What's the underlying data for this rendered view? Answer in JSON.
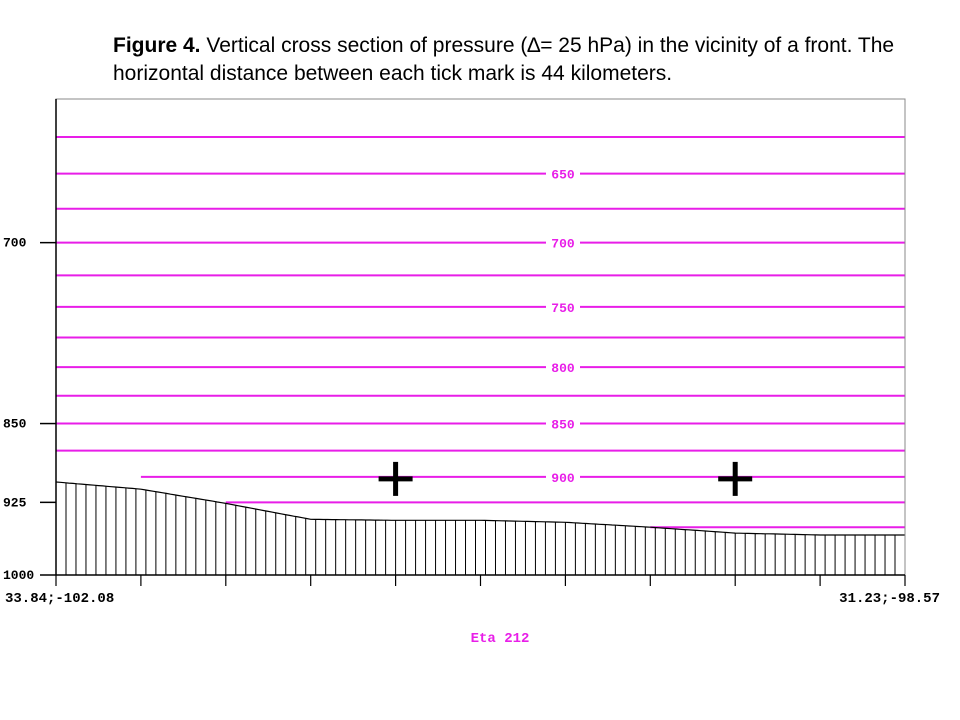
{
  "caption": {
    "label": "Figure 4.",
    "text_before_delta": " Vertical cross section of pressure (",
    "delta_symbol": "∆",
    "text_after_delta": "= 25 hPa) in the vicinity of a front. The horizontal distance between each tick mark is 44 kilometers."
  },
  "chart_data": {
    "type": "line",
    "xlim": [
      0,
      10
    ],
    "ylim": [
      1000,
      600
    ],
    "y_scale": "log",
    "left_ticks": [
      {
        "p": 700,
        "label": "700"
      },
      {
        "p": 850,
        "label": "850"
      },
      {
        "p": 925,
        "label": "925"
      },
      {
        "p": 1000,
        "label": "1000"
      }
    ],
    "x_tick_positions": [
      0,
      1,
      2,
      3,
      4,
      5,
      6,
      7,
      8,
      9,
      10
    ],
    "x_end_labels": [
      "33.84;-102.08",
      "31.23;-98.57"
    ],
    "isobar_labels": [
      {
        "p": 650,
        "label": "650"
      },
      {
        "p": 700,
        "label": "700"
      },
      {
        "p": 750,
        "label": "750"
      },
      {
        "p": 800,
        "label": "800"
      },
      {
        "p": 850,
        "label": "850"
      },
      {
        "p": 900,
        "label": "900"
      }
    ],
    "isobars": [
      {
        "p": 625,
        "x_start": 0
      },
      {
        "p": 650,
        "x_start": 0
      },
      {
        "p": 675,
        "x_start": 0
      },
      {
        "p": 700,
        "x_start": 0
      },
      {
        "p": 725,
        "x_start": 0
      },
      {
        "p": 750,
        "x_start": 0
      },
      {
        "p": 775,
        "x_start": 0
      },
      {
        "p": 800,
        "x_start": 0
      },
      {
        "p": 825,
        "x_start": 0
      },
      {
        "p": 850,
        "x_start": 0
      },
      {
        "p": 875,
        "x_start": 0
      },
      {
        "p": 900,
        "x_start": 1
      },
      {
        "p": 925,
        "x_start": 2
      },
      {
        "p": 950,
        "x_start": 7
      }
    ],
    "surface_pressure": {
      "x": [
        0,
        1,
        2,
        3,
        4,
        5,
        6,
        7,
        8,
        9,
        10
      ],
      "values": [
        905,
        912,
        926,
        942,
        943,
        943,
        945,
        950,
        956,
        958,
        958
      ]
    },
    "markers": [
      {
        "x": 4,
        "p": 902,
        "symbol": "+"
      },
      {
        "x": 8,
        "p": 902,
        "symbol": "+"
      }
    ],
    "footer_label": "Eta 212",
    "colors": {
      "isobar": "#e81ee8",
      "axis": "#000000",
      "footer": "#e81ee8"
    }
  }
}
